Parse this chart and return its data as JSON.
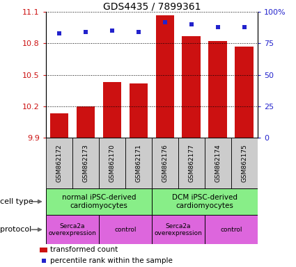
{
  "title": "GDS4435 / 7899361",
  "samples": [
    "GSM862172",
    "GSM862173",
    "GSM862170",
    "GSM862171",
    "GSM862176",
    "GSM862177",
    "GSM862174",
    "GSM862175"
  ],
  "bar_values": [
    10.13,
    10.2,
    10.43,
    10.42,
    11.07,
    10.87,
    10.82,
    10.77
  ],
  "percentile_values": [
    83,
    84,
    85,
    84,
    92,
    90,
    88,
    88
  ],
  "bar_color": "#cc1111",
  "dot_color": "#2222cc",
  "ylim_left": [
    9.9,
    11.1
  ],
  "ylim_right": [
    0,
    100
  ],
  "yticks_left": [
    9.9,
    10.2,
    10.5,
    10.8,
    11.1
  ],
  "yticks_right": [
    0,
    25,
    50,
    75,
    100
  ],
  "ytick_labels_right": [
    "0",
    "25",
    "50",
    "75",
    "100%"
  ],
  "cell_type_labels": [
    "normal iPSC-derived\ncardiomyocytes",
    "DCM iPSC-derived\ncardiomyocytes"
  ],
  "cell_type_color": "#88ee88",
  "protocol_labels": [
    "Serca2a\noverexpression",
    "control",
    "Serca2a\noverexpression",
    "control"
  ],
  "protocol_color": "#dd66dd",
  "legend_bar_label": "transformed count",
  "legend_dot_label": "percentile rank within the sample",
  "cell_type_row_label": "cell type",
  "protocol_row_label": "protocol",
  "sample_box_color": "#cccccc"
}
